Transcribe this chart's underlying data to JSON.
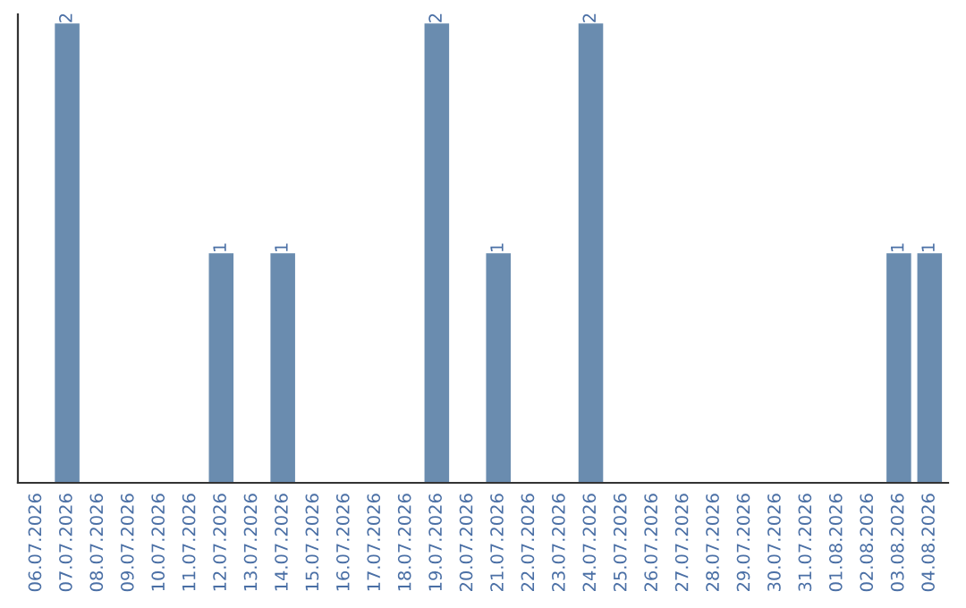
{
  "chart_data": {
    "type": "bar",
    "categories": [
      "06.07.2026",
      "07.07.2026",
      "08.07.2026",
      "09.07.2026",
      "10.07.2026",
      "11.07.2026",
      "12.07.2026",
      "13.07.2026",
      "14.07.2026",
      "15.07.2026",
      "16.07.2026",
      "17.07.2026",
      "18.07.2026",
      "19.07.2026",
      "20.07.2026",
      "21.07.2026",
      "22.07.2026",
      "23.07.2026",
      "24.07.2026",
      "25.07.2026",
      "26.07.2026",
      "27.07.2026",
      "28.07.2026",
      "29.07.2026",
      "30.07.2026",
      "31.07.2026",
      "01.08.2026",
      "02.08.2026",
      "03.08.2026",
      "04.08.2026"
    ],
    "values": [
      0,
      2,
      0,
      0,
      0,
      0,
      1,
      0,
      1,
      0,
      0,
      0,
      0,
      2,
      0,
      1,
      0,
      0,
      2,
      0,
      0,
      0,
      0,
      0,
      0,
      0,
      0,
      0,
      1,
      1
    ],
    "value_labels": [
      null,
      "2",
      null,
      null,
      null,
      null,
      "1",
      null,
      "1",
      null,
      null,
      null,
      null,
      "2",
      null,
      "1",
      null,
      null,
      "2",
      null,
      null,
      null,
      null,
      null,
      null,
      null,
      null,
      null,
      "1",
      "1"
    ],
    "color": "#6a8caf",
    "tick_labels": "x",
    "grid": false,
    "legend": false
  }
}
